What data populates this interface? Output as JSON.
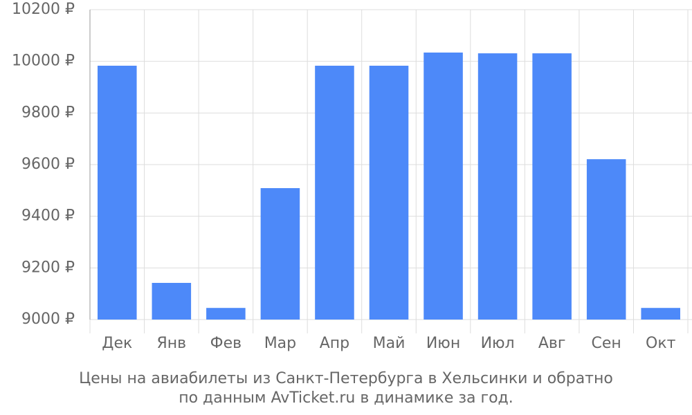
{
  "chart_data": {
    "type": "bar",
    "caption": [
      "Цены на авиабилеты из Санкт-Петербурга в Хельсинки и обратно",
      "по данным AvTicket.ru в динамике за год."
    ],
    "categories": [
      "Дек",
      "Янв",
      "Фев",
      "Мар",
      "Апр",
      "Май",
      "Июн",
      "Июл",
      "Авг",
      "Сен",
      "Окт"
    ],
    "values": [
      9983,
      9142,
      9045,
      9509,
      9983,
      9983,
      10034,
      10031,
      10031,
      9621,
      9045
    ],
    "color": "#4d89f9",
    "ylim": [
      9000,
      10200
    ],
    "yticks": [
      {
        "value": 9000,
        "label": "9000 ₽"
      },
      {
        "value": 9200,
        "label": "9200 ₽"
      },
      {
        "value": 9400,
        "label": "9400 ₽"
      },
      {
        "value": 9600,
        "label": "9600 ₽"
      },
      {
        "value": 9800,
        "label": "9800 ₽"
      },
      {
        "value": 10000,
        "label": "10000 ₽"
      },
      {
        "value": 10200,
        "label": "10200 ₽"
      }
    ],
    "grid": true
  }
}
